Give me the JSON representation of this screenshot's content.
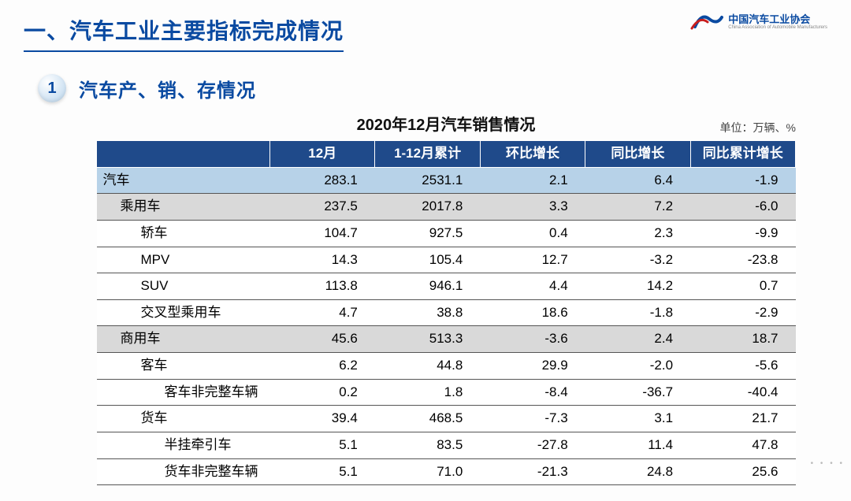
{
  "header": {
    "title": "一、汽车工业主要指标完成情况",
    "logo_cn": "中国汽车工业协会",
    "logo_en": "China Association of Automobile Manufacturers",
    "logo_mark_color": "#0a4aa1",
    "logo_accent_color": "#c81e1e"
  },
  "section": {
    "number": "1",
    "subtitle": "汽车产、销、存情况"
  },
  "table": {
    "title": "2020年12月汽车销售情况",
    "unit": "单位：万辆、%",
    "columns": [
      "",
      "12月",
      "1-12月累计",
      "环比增长",
      "同比增长",
      "同比累计增长"
    ],
    "header_bg": "#1f4a8a",
    "header_fg": "#ffffff",
    "highlight_bg": "#b7d2e8",
    "subgroup_bg": "#d9d9d9",
    "border_color": "#555555",
    "rows": [
      {
        "label": "汽车",
        "indent": 0,
        "style": "hl",
        "values": [
          "283.1",
          "2531.1",
          "2.1",
          "6.4",
          "-1.9"
        ]
      },
      {
        "label": "乘用车",
        "indent": 1,
        "style": "sub",
        "values": [
          "237.5",
          "2017.8",
          "3.3",
          "7.2",
          "-6.0"
        ]
      },
      {
        "label": "轿车",
        "indent": 2,
        "style": "plain",
        "values": [
          "104.7",
          "927.5",
          "0.4",
          "2.3",
          "-9.9"
        ]
      },
      {
        "label": "MPV",
        "indent": 2,
        "style": "plain",
        "values": [
          "14.3",
          "105.4",
          "12.7",
          "-3.2",
          "-23.8"
        ]
      },
      {
        "label": "SUV",
        "indent": 2,
        "style": "plain",
        "values": [
          "113.8",
          "946.1",
          "4.4",
          "14.2",
          "0.7"
        ]
      },
      {
        "label": "交叉型乘用车",
        "indent": 2,
        "style": "plain",
        "values": [
          "4.7",
          "38.8",
          "18.6",
          "-1.8",
          "-2.9"
        ]
      },
      {
        "label": "商用车",
        "indent": 1,
        "style": "sub",
        "values": [
          "45.6",
          "513.3",
          "-3.6",
          "2.4",
          "18.7"
        ]
      },
      {
        "label": "客车",
        "indent": 2,
        "style": "plain",
        "values": [
          "6.2",
          "44.8",
          "29.9",
          "-2.0",
          "-5.6"
        ]
      },
      {
        "label": "客车非完整车辆",
        "indent": 3,
        "style": "plain",
        "values": [
          "0.2",
          "1.8",
          "-8.4",
          "-36.7",
          "-40.4"
        ]
      },
      {
        "label": "货车",
        "indent": 2,
        "style": "plain",
        "values": [
          "39.4",
          "468.5",
          "-7.3",
          "3.1",
          "21.7"
        ]
      },
      {
        "label": "半挂牵引车",
        "indent": 3,
        "style": "plain",
        "values": [
          "5.1",
          "83.5",
          "-27.8",
          "11.4",
          "47.8"
        ]
      },
      {
        "label": "货车非完整车辆",
        "indent": 3,
        "style": "plain",
        "values": [
          "5.1",
          "71.0",
          "-21.3",
          "24.8",
          "25.6"
        ]
      }
    ]
  }
}
